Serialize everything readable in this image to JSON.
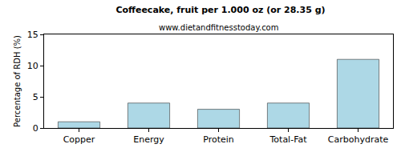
{
  "chart_data": {
    "type": "bar",
    "title": "Coffeecake, fruit per 1.000 oz (or 28.35 g)",
    "subtitle": "www.dietandfitnesstoday.com",
    "y_label": "Percentage of RDH (%)",
    "categories": [
      "Copper",
      "Energy",
      "Protein",
      "Total-Fat",
      "Carbohydrate"
    ],
    "values": [
      1,
      4,
      3,
      4,
      11
    ],
    "color": "#add8e6",
    "ylim": [
      0,
      15
    ],
    "yticks": [
      0,
      5,
      10,
      15
    ],
    "grid": false
  }
}
